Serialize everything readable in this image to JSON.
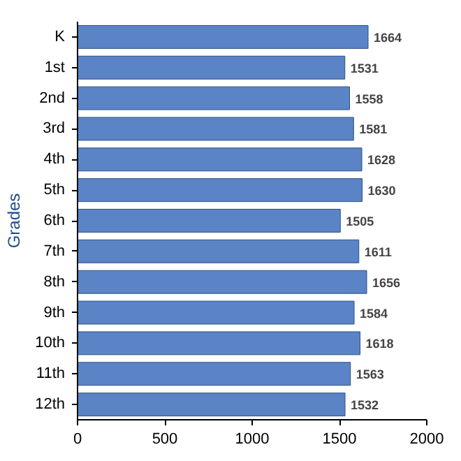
{
  "chart_data": {
    "type": "bar",
    "orientation": "horizontal",
    "ylabel": "Grades",
    "categories": [
      "K",
      "1st",
      "2nd",
      "3rd",
      "4th",
      "5th",
      "6th",
      "7th",
      "8th",
      "9th",
      "10th",
      "11th",
      "12th"
    ],
    "values": [
      1664,
      1531,
      1558,
      1581,
      1628,
      1630,
      1505,
      1611,
      1656,
      1584,
      1618,
      1563,
      1532
    ],
    "color": "#5b84c6",
    "xlim": [
      0,
      2000
    ],
    "xticks": [
      0,
      500,
      1000,
      1500,
      2000
    ],
    "grid": false,
    "data_labels": true
  }
}
